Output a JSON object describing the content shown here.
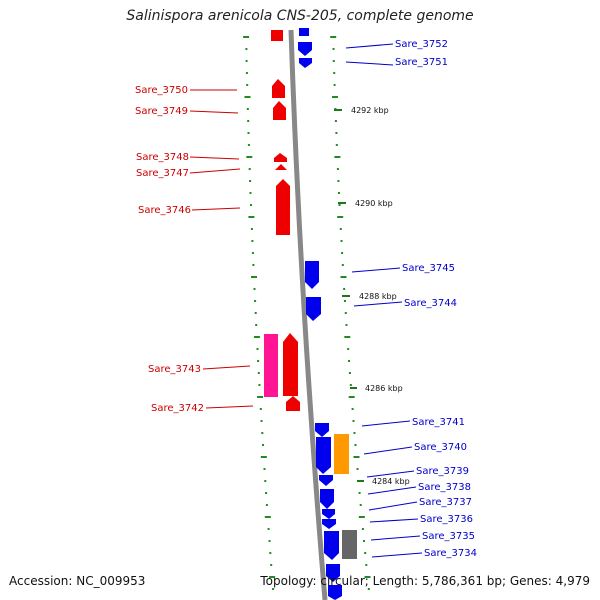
{
  "title": "Salinispora arenicola CNS-205, complete genome",
  "footer": {
    "accession": "Accession: NC_009953",
    "topology": "Topology: circular; Length: 5,786,361 bp; Genes: 4,979"
  },
  "colors": {
    "forward_gene": "#ee0000",
    "reverse_gene": "#0000ee",
    "pink_gene": "#ff1493",
    "orange_gene": "#ff9900",
    "gray_gene": "#666666",
    "backbone": "#888888",
    "gc_marks": "#228b22"
  },
  "kbp_labels": [
    "4292 kbp",
    "4290 kbp",
    "4288 kbp",
    "4286 kbp",
    "4284 kbp"
  ],
  "genes_left": [
    {
      "label": "Sare_3750"
    },
    {
      "label": "Sare_3749"
    },
    {
      "label": "Sare_3748"
    },
    {
      "label": "Sare_3747"
    },
    {
      "label": "Sare_3746"
    },
    {
      "label": "Sare_3743"
    },
    {
      "label": "Sare_3742"
    }
  ],
  "genes_right": [
    {
      "label": "Sare_3752"
    },
    {
      "label": "Sare_3751"
    },
    {
      "label": "Sare_3745"
    },
    {
      "label": "Sare_3744"
    },
    {
      "label": "Sare_3741"
    },
    {
      "label": "Sare_3740"
    },
    {
      "label": "Sare_3739"
    },
    {
      "label": "Sare_3738"
    },
    {
      "label": "Sare_3737"
    },
    {
      "label": "Sare_3736"
    },
    {
      "label": "Sare_3735"
    },
    {
      "label": "Sare_3734"
    }
  ]
}
